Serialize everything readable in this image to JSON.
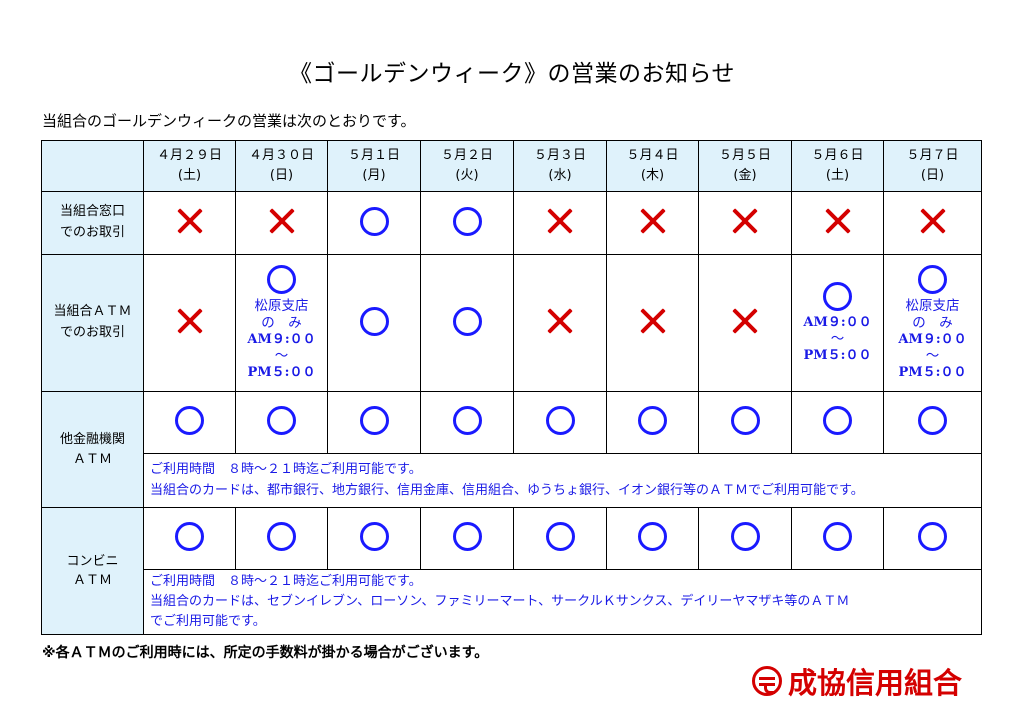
{
  "title": "《ゴールデンウィーク》の営業のお知らせ",
  "intro": "当組合のゴールデンウィークの営業は次のとおりです。",
  "dates": [
    {
      "date": "４月２９日",
      "day": "(土)"
    },
    {
      "date": "４月３０日",
      "day": "(日)"
    },
    {
      "date": "５月１日",
      "day": "(月)"
    },
    {
      "date": "５月２日",
      "day": "(火)"
    },
    {
      "date": "５月３日",
      "day": "(水)"
    },
    {
      "date": "５月４日",
      "day": "(木)"
    },
    {
      "date": "５月５日",
      "day": "(金)"
    },
    {
      "date": "５月６日",
      "day": "(土)"
    },
    {
      "date": "５月７日",
      "day": "(日)"
    }
  ],
  "rows": {
    "window": {
      "label_line1": "当組合窓口",
      "label_line2": "でのお取引",
      "status": [
        "closed",
        "closed",
        "open",
        "open",
        "closed",
        "closed",
        "closed",
        "closed",
        "closed"
      ]
    },
    "atm": {
      "label_line1": "当組合ＡＴＭ",
      "label_line2": "でのお取引",
      "status": [
        "closed",
        "open",
        "open",
        "open",
        "closed",
        "closed",
        "closed",
        "open",
        "open"
      ],
      "note_apr30": {
        "branch": "松原支店",
        "only": "の　み",
        "from": "AM９:００",
        "tilde": "～",
        "to": "PM５:００"
      },
      "note_may6": {
        "from": "AM９:００",
        "tilde": "～",
        "to": "PM５:００"
      },
      "note_may7": {
        "branch": "松原支店",
        "only": "の　み",
        "from": "AM９:００",
        "tilde": "～",
        "to": "PM５:００"
      }
    },
    "other_atm": {
      "label_line1": "他金融機関",
      "label_line2": "ＡＴＭ",
      "status": [
        "open",
        "open",
        "open",
        "open",
        "open",
        "open",
        "open",
        "open",
        "open"
      ],
      "note_line1": "ご利用時間　８時～２１時迄ご利用可能です。",
      "note_line2": "当組合のカードは、都市銀行、地方銀行、信用金庫、信用組合、ゆうちょ銀行、イオン銀行等のＡＴＭでご利用可能です。"
    },
    "convenience": {
      "label_line1": "コンビニ",
      "label_line2": "ＡＴＭ",
      "status": [
        "open",
        "open",
        "open",
        "open",
        "open",
        "open",
        "open",
        "open",
        "open"
      ],
      "note_line1": "ご利用時間　８時～２１時迄ご利用可能です。",
      "note_line2": "当組合のカードは、セブンイレブン、ローソン、ファミリーマート、サークルＫサンクス、デイリーヤマザキ等のＡＴＭ",
      "note_line3": "でご利用可能です。"
    }
  },
  "footnote": "※各ＡＴＭのご利用時には、所定の手数料が掛かる場合がございます。",
  "logo": {
    "text": "成協信用組合",
    "mark": "seikyo-logo-icon"
  },
  "colors": {
    "header_bg": "#dff2fb",
    "cross": "#d40000",
    "circle": "#1a1aff",
    "note": "#1a1ae6",
    "logo": "#d40000"
  }
}
